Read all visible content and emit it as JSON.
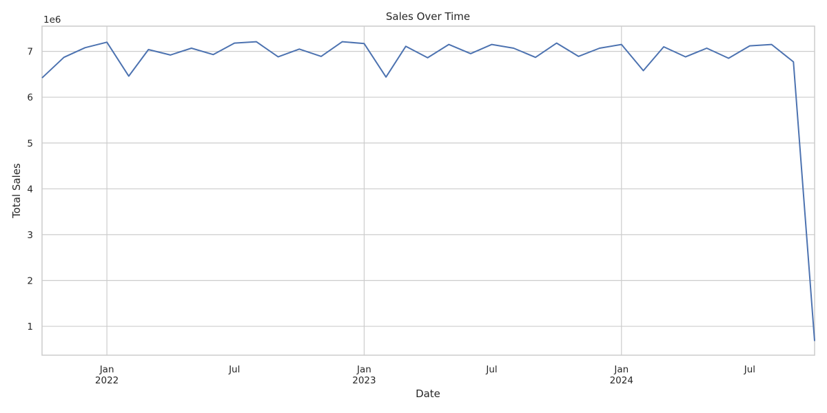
{
  "chart_data": {
    "type": "line",
    "title": "Sales Over Time",
    "xlabel": "Date",
    "ylabel": "Total Sales",
    "y_offset_label": "1e6",
    "grid": true,
    "y_ticks": [
      1,
      2,
      3,
      4,
      5,
      6,
      7
    ],
    "y_tick_labels": [
      "1",
      "2",
      "3",
      "4",
      "5",
      "6",
      "7"
    ],
    "ylim": [
      0.37,
      7.55
    ],
    "xlim": [
      "2021-10-01",
      "2024-10-01"
    ],
    "x_ticks": [
      {
        "date": "2022-01-01",
        "label": "Jan",
        "year": "2022",
        "major": true
      },
      {
        "date": "2022-07-01",
        "label": "Jul",
        "year": "",
        "major": false
      },
      {
        "date": "2023-01-01",
        "label": "Jan",
        "year": "2023",
        "major": true
      },
      {
        "date": "2023-07-01",
        "label": "Jul",
        "year": "",
        "major": false
      },
      {
        "date": "2024-01-01",
        "label": "Jan",
        "year": "2024",
        "major": true
      },
      {
        "date": "2024-07-01",
        "label": "Jul",
        "year": "",
        "major": false
      }
    ],
    "series": [
      {
        "color": "#4c72b0",
        "x": [
          "2021-10-01",
          "2021-11-01",
          "2021-12-01",
          "2022-01-01",
          "2022-02-01",
          "2022-03-01",
          "2022-04-01",
          "2022-05-01",
          "2022-06-01",
          "2022-07-01",
          "2022-08-01",
          "2022-09-01",
          "2022-10-01",
          "2022-11-01",
          "2022-12-01",
          "2023-01-01",
          "2023-02-01",
          "2023-03-01",
          "2023-04-01",
          "2023-05-01",
          "2023-06-01",
          "2023-07-01",
          "2023-08-01",
          "2023-09-01",
          "2023-10-01",
          "2023-11-01",
          "2023-12-01",
          "2024-01-01",
          "2024-02-01",
          "2024-03-01",
          "2024-04-01",
          "2024-05-01",
          "2024-06-01",
          "2024-07-01",
          "2024-08-01",
          "2024-09-01",
          "2024-10-01"
        ],
        "values": [
          6.42,
          6.87,
          7.08,
          7.2,
          6.46,
          7.04,
          6.92,
          7.07,
          6.93,
          7.18,
          7.21,
          6.88,
          7.05,
          6.89,
          7.21,
          7.17,
          6.44,
          7.11,
          6.86,
          7.15,
          6.95,
          7.15,
          7.07,
          6.87,
          7.18,
          6.89,
          7.07,
          7.15,
          6.58,
          7.1,
          6.88,
          7.07,
          6.85,
          7.12,
          7.15,
          6.77,
          0.68
        ]
      }
    ]
  }
}
